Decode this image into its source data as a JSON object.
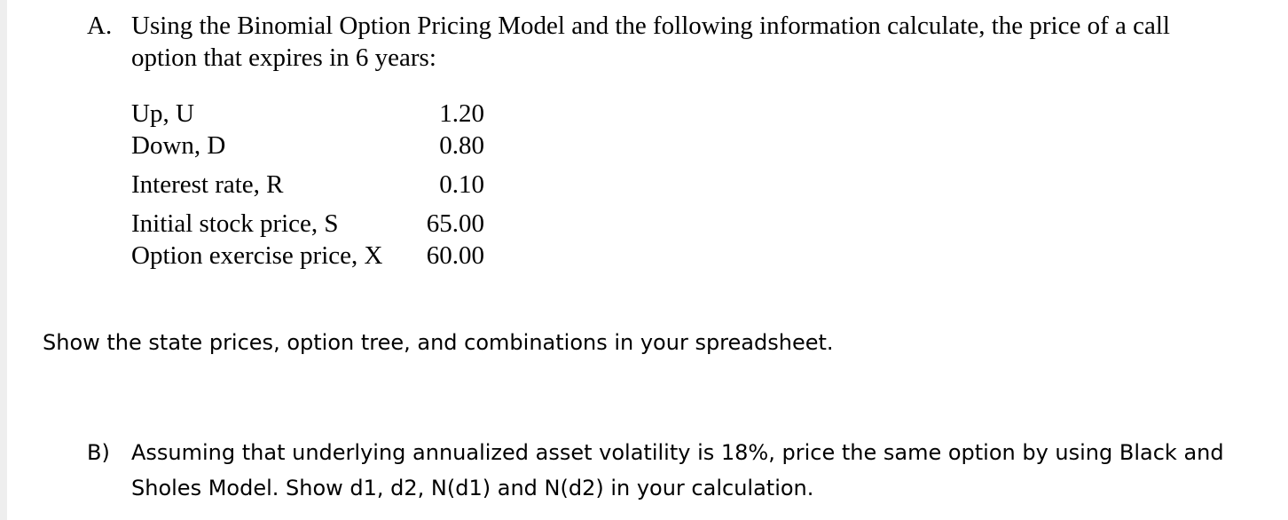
{
  "question_a": {
    "label": "A.",
    "text": "Using the Binomial Option Pricing Model and the following information calculate, the price of a call option that expires in 6 years:"
  },
  "parameters": [
    {
      "label": "Up, U",
      "value": "1.20"
    },
    {
      "label": "Down, D",
      "value": "0.80"
    },
    {
      "label": "Interest rate, R",
      "value": "0.10"
    },
    {
      "label": "Initial stock price, S",
      "value": "65.00"
    },
    {
      "label": "Option exercise price, X",
      "value": "60.00"
    }
  ],
  "instruction": "Show the state prices, option tree, and combinations in your spreadsheet.",
  "question_b": {
    "label": "B)",
    "text": "Assuming that underlying annualized asset volatility is 18%, price the same option by using Black and Sholes Model. Show  d1, d2, N(d1) and N(d2) in your calculation."
  }
}
